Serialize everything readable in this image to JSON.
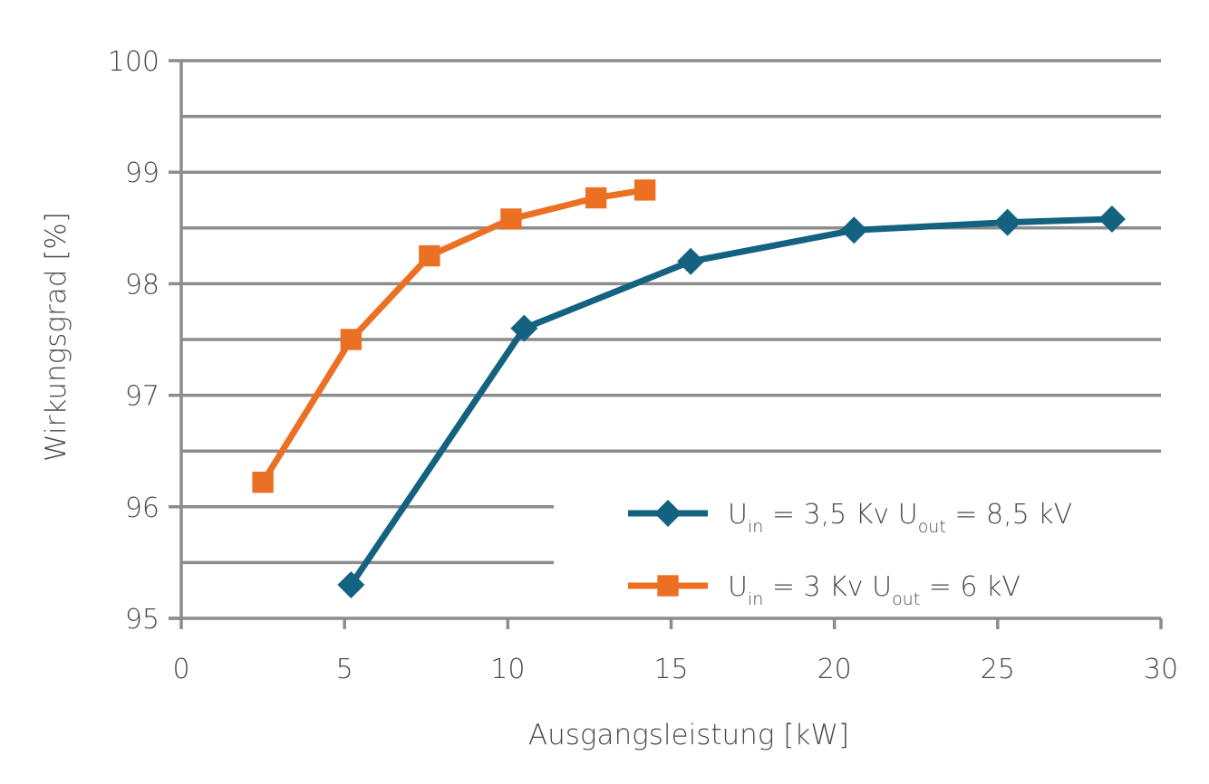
{
  "chart_data": {
    "type": "line",
    "xlabel": "Ausgangsleistung [kW]",
    "ylabel": "Wirkungsgrad [%]",
    "xlim": [
      0,
      30
    ],
    "ylim": [
      95,
      100
    ],
    "xticks": [
      "0",
      "5",
      "10",
      "15",
      "20",
      "25",
      "30"
    ],
    "yticks": [
      "95",
      "96",
      "97",
      "98",
      "99",
      "100"
    ],
    "grid": true,
    "legend_position": "lower-right",
    "series": [
      {
        "name_parts": [
          "U",
          "in",
          " = 3,5 Kv U",
          "out",
          " = 8,5 kV"
        ],
        "color": "#13627f",
        "marker": "diamond",
        "x": [
          5.2,
          10.5,
          15.6,
          20.6,
          25.3,
          28.5
        ],
        "y": [
          95.3,
          97.6,
          98.2,
          98.48,
          98.55,
          98.58
        ]
      },
      {
        "name_parts": [
          "U",
          "in",
          " = 3 Kv U",
          "out",
          " = 6 kV"
        ],
        "color": "#ec7024",
        "marker": "square",
        "x": [
          2.5,
          5.2,
          7.6,
          10.1,
          12.7,
          14.2
        ],
        "y": [
          96.22,
          97.5,
          98.25,
          98.58,
          98.77,
          98.84
        ]
      }
    ]
  }
}
